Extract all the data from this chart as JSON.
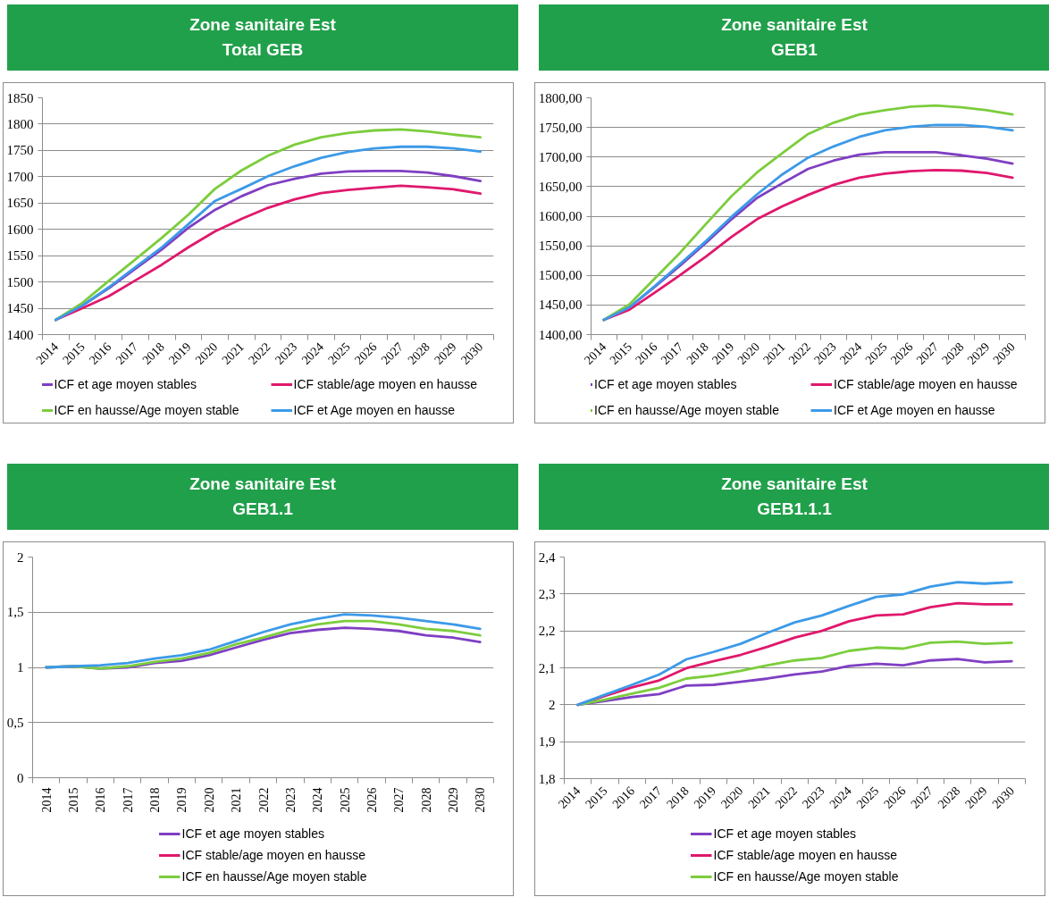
{
  "chart_data": [
    {
      "type": "line",
      "title": "Zone sanitaire Est",
      "subtitle": "Total GEB",
      "categories": [
        "2014",
        "2015",
        "2016",
        "2017",
        "2018",
        "2019",
        "2020",
        "2021",
        "2022",
        "2023",
        "2024",
        "2025",
        "2026",
        "2027",
        "2028",
        "2029",
        "2030"
      ],
      "series": [
        {
          "name": "ICF et age moyen stables",
          "color": "#7f3fc3",
          "values": [
            1428,
            1455,
            1488,
            1525,
            1562,
            1603,
            1637,
            1663,
            1684,
            1696,
            1706,
            1710,
            1711,
            1711,
            1708,
            1701,
            1692
          ]
        },
        {
          "name": "ICF stable/age moyen en hausse",
          "color": "#e0186c",
          "values": [
            1428,
            1450,
            1473,
            1503,
            1533,
            1566,
            1596,
            1620,
            1641,
            1657,
            1669,
            1675,
            1679,
            1683,
            1680,
            1676,
            1668
          ]
        },
        {
          "name": "ICF en hausse/Age moyen stable",
          "color": "#7ccd3d",
          "values": [
            1428,
            1460,
            1502,
            1543,
            1584,
            1628,
            1677,
            1712,
            1740,
            1761,
            1775,
            1783,
            1788,
            1790,
            1786,
            1780,
            1775
          ]
        },
        {
          "name": "ICF et Age moyen en hausse",
          "color": "#3c9ae8",
          "values": [
            1428,
            1455,
            1490,
            1528,
            1566,
            1610,
            1654,
            1677,
            1701,
            1720,
            1736,
            1747,
            1754,
            1757,
            1757,
            1754,
            1748
          ]
        }
      ],
      "ylim": [
        1400,
        1850
      ],
      "yticks": [
        1400,
        1450,
        1500,
        1550,
        1600,
        1650,
        1700,
        1750,
        1800,
        1850
      ],
      "grid": "y",
      "legend": "bottom"
    },
    {
      "type": "line",
      "title": "Zone sanitaire Est",
      "subtitle": "GEB1",
      "categories": [
        "2014",
        "2015",
        "2016",
        "2017",
        "2018",
        "2019",
        "2020",
        "2021",
        "2022",
        "2023",
        "2024",
        "2025",
        "2026",
        "2027",
        "2028",
        "2029",
        "2030"
      ],
      "series": [
        {
          "name": "ICF et age moyen stables",
          "color": "#7f3fc3",
          "values": [
            1425,
            1446,
            1481,
            1517,
            1555,
            1595,
            1631,
            1656,
            1680,
            1694,
            1704,
            1708,
            1708,
            1708,
            1703,
            1697,
            1689
          ]
        },
        {
          "name": "ICF stable/age moyen en hausse",
          "color": "#e0186c",
          "values": [
            1425,
            1442,
            1471,
            1501,
            1532,
            1565,
            1595,
            1617,
            1636,
            1653,
            1665,
            1672,
            1676,
            1678,
            1677,
            1673,
            1665
          ]
        },
        {
          "name": "ICF en hausse/Age moyen stable",
          "color": "#7ccd3d",
          "values": [
            1425,
            1451,
            1495,
            1539,
            1587,
            1634,
            1674,
            1707,
            1739,
            1758,
            1772,
            1779,
            1785,
            1787,
            1784,
            1779,
            1772
          ]
        },
        {
          "name": "ICF et Age moyen en hausse",
          "color": "#3c9ae8",
          "values": [
            1425,
            1446,
            1482,
            1520,
            1558,
            1599,
            1637,
            1671,
            1699,
            1718,
            1734,
            1745,
            1751,
            1754,
            1754,
            1751,
            1745
          ]
        }
      ],
      "ylim": [
        1400,
        1800
      ],
      "yticks": [
        {
          "value": 1400,
          "label": "1400,00"
        },
        {
          "value": 1450,
          "label": "1450,00"
        },
        {
          "value": 1500,
          "label": "1500,00"
        },
        {
          "value": 1550,
          "label": "1550,00"
        },
        {
          "value": 1600,
          "label": "1600,00"
        },
        {
          "value": 1650,
          "label": "1650,00"
        },
        {
          "value": 1700,
          "label": "1700,00"
        },
        {
          "value": 1750,
          "label": "1750,00"
        },
        {
          "value": 1800,
          "label": "1800,00"
        }
      ],
      "grid": "y",
      "legend": "bottom"
    },
    {
      "type": "line",
      "title": "Zone sanitaire Est",
      "subtitle": "GEB1.1",
      "categories": [
        "2014",
        "2015",
        "2016",
        "2017",
        "2018",
        "2019",
        "2020",
        "2021",
        "2022",
        "2023",
        "2024",
        "2025",
        "2026",
        "2027",
        "2028",
        "2029",
        "2030"
      ],
      "series": [
        {
          "name": "ICF et age moyen stables",
          "color": "#7f3fc3",
          "values": [
            1,
            1.01,
            0.99,
            1,
            1.04,
            1.06,
            1.11,
            1.18,
            1.25,
            1.31,
            1.34,
            1.36,
            1.35,
            1.33,
            1.29,
            1.27,
            1.23
          ]
        },
        {
          "name": "ICF stable/age moyen en hausse",
          "color": "#e0186c",
          "values": [
            null,
            null,
            null,
            null,
            null,
            null,
            null,
            null,
            null,
            null,
            null,
            null,
            null,
            null,
            null,
            null,
            null
          ]
        },
        {
          "name": "ICF en hausse/Age moyen stable",
          "color": "#7ccd3d",
          "values": [
            1,
            1.01,
            0.99,
            1.01,
            1.05,
            1.08,
            1.13,
            1.21,
            1.27,
            1.34,
            1.39,
            1.42,
            1.42,
            1.39,
            1.35,
            1.33,
            1.29
          ]
        },
        {
          "color": "#3c9ae8",
          "values": [
            1,
            1.01,
            1.02,
            1.04,
            1.08,
            1.11,
            1.16,
            1.24,
            1.32,
            1.39,
            1.44,
            1.48,
            1.47,
            1.45,
            1.42,
            1.39,
            1.35
          ]
        }
      ],
      "ylim": [
        0,
        2
      ],
      "yticks": [
        0,
        {
          "value": 0.5,
          "label": "0,5"
        },
        1,
        {
          "value": 1.5,
          "label": "1,5"
        },
        2
      ],
      "grid": "y",
      "legend": "bottom"
    },
    {
      "type": "line",
      "title": "Zone sanitaire Est",
      "subtitle": "GEB1.1.1",
      "categories": [
        "2014",
        "2015",
        "2016",
        "2017",
        "2018",
        "2019",
        "2020",
        "2021",
        "2022",
        "2023",
        "2024",
        "2025",
        "2026",
        "2027",
        "2028",
        "2029",
        "2030"
      ],
      "series": [
        {
          "name": "ICF et age moyen stables",
          "color": "#7f3fc3",
          "values": [
            2,
            2.01,
            2.021,
            2.029,
            2.052,
            2.054,
            2.062,
            2.071,
            2.082,
            2.09,
            2.105,
            2.111,
            2.107,
            2.12,
            2.124,
            2.115,
            2.118
          ]
        },
        {
          "name": "ICF stable/age moyen en hausse",
          "color": "#e0186c",
          "values": [
            2,
            2.024,
            2.047,
            2.066,
            2.099,
            2.118,
            2.135,
            2.157,
            2.182,
            2.2,
            2.226,
            2.242,
            2.245,
            2.264,
            2.275,
            2.272,
            2.272
          ]
        },
        {
          "name": "ICF en hausse/Age moyen stable",
          "color": "#7ccd3d",
          "values": [
            2,
            2.014,
            2.03,
            2.046,
            2.071,
            2.079,
            2.092,
            2.107,
            2.12,
            2.127,
            2.146,
            2.155,
            2.152,
            2.168,
            2.171,
            2.165,
            2.168
          ]
        },
        {
          "color": "#3c9ae8",
          "values": [
            2,
            2.027,
            2.054,
            2.082,
            2.123,
            2.143,
            2.165,
            2.195,
            2.223,
            2.242,
            2.268,
            2.292,
            2.299,
            2.32,
            2.332,
            2.328,
            2.332
          ]
        }
      ],
      "ylim": [
        1.8,
        2.4
      ],
      "yticks": [
        {
          "value": 1.8,
          "label": "1,8"
        },
        {
          "value": 1.9,
          "label": "1,9"
        },
        2,
        {
          "value": 2.1,
          "label": "2,1"
        },
        {
          "value": 2.2,
          "label": "2,2"
        },
        {
          "value": 2.3,
          "label": "2,3"
        },
        {
          "value": 2.4,
          "label": "2,4"
        }
      ],
      "grid": "y",
      "legend": "bottom"
    }
  ]
}
